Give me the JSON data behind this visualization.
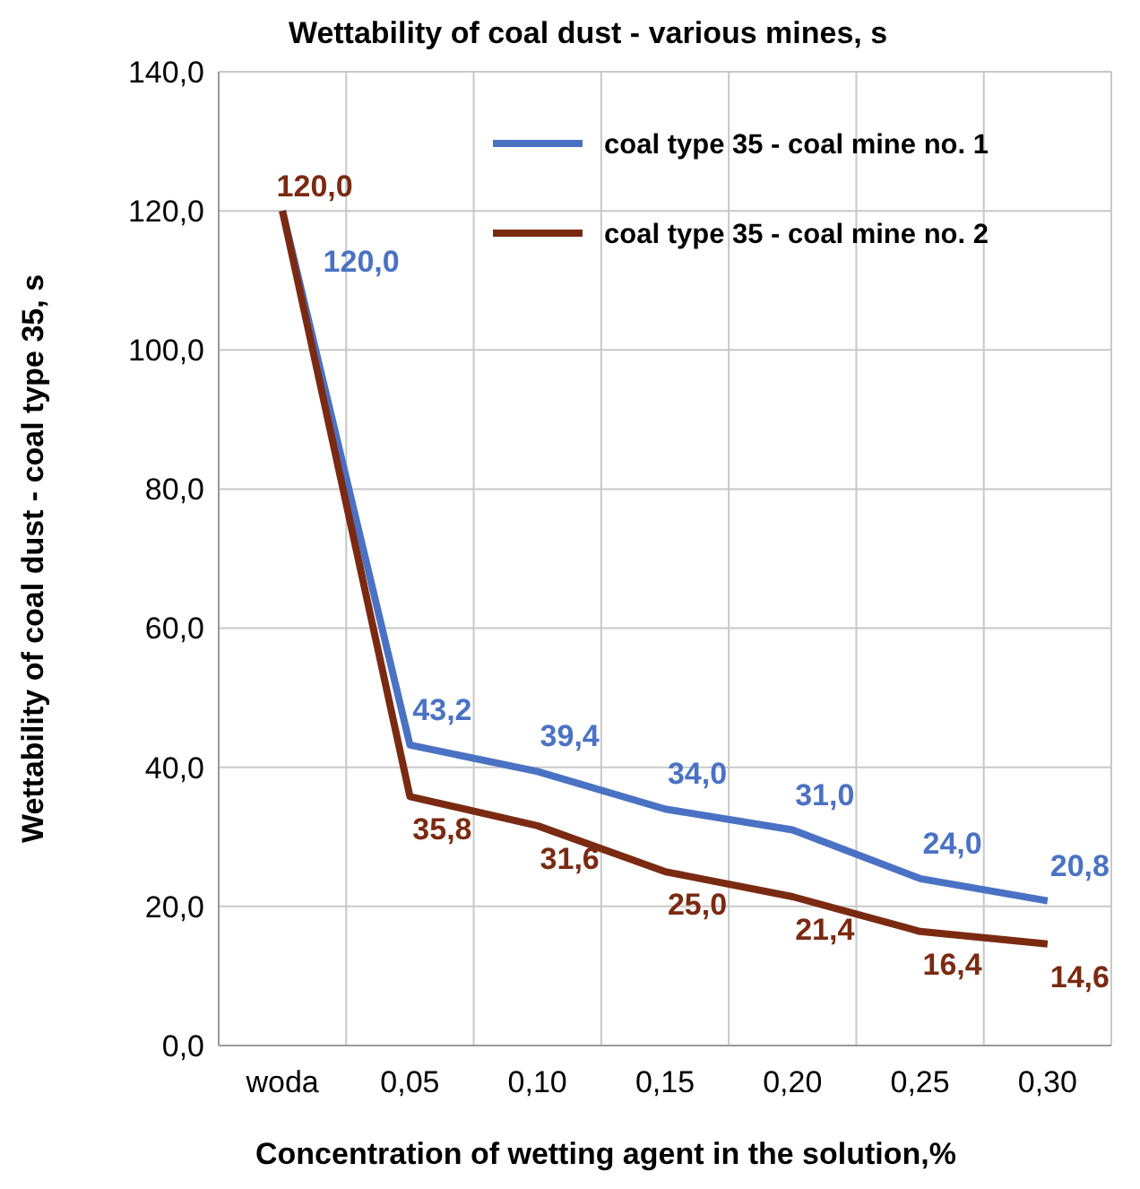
{
  "chart_data": {
    "type": "line",
    "title": "Wettability of coal dust - various mines, s",
    "xlabel": "Concentration of wetting agent in the solution,%",
    "ylabel": "Wettability of coal dust - coal type  35, s",
    "categories": [
      "woda",
      "0,05",
      "0,10",
      "0,15",
      "0,20",
      "0,25",
      "0,30"
    ],
    "series": [
      {
        "name": "coal type 35 - coal mine no. 1",
        "color": "#4a72c4",
        "values": [
          120.0,
          43.2,
          39.4,
          34.0,
          31.0,
          24.0,
          20.8
        ],
        "value_labels": [
          "120,0",
          "43,2",
          "39,4",
          "34,0",
          "31,0",
          "24,0",
          "20,8"
        ]
      },
      {
        "name": "coal type 35 - coal mine no. 2",
        "color": "#7b2a12",
        "values": [
          120.0,
          35.8,
          31.6,
          25.0,
          21.4,
          16.4,
          14.6
        ],
        "value_labels": [
          "120,0",
          "35,8",
          "31,6",
          "25,0",
          "21,4",
          "16,4",
          "14,6"
        ]
      }
    ],
    "ylim": [
      0,
      140
    ],
    "yticks": [
      {
        "value": 0,
        "label": "0,0"
      },
      {
        "value": 20,
        "label": "20,0"
      },
      {
        "value": 40,
        "label": "40,0"
      },
      {
        "value": 60,
        "label": "60,0"
      },
      {
        "value": 80,
        "label": "80,0"
      },
      {
        "value": 100,
        "label": "100,0"
      },
      {
        "value": 120,
        "label": "120,0"
      },
      {
        "value": 140,
        "label": "140,0"
      }
    ],
    "grid": true,
    "legend": "top right",
    "marker": "none",
    "line_style": "solid"
  }
}
